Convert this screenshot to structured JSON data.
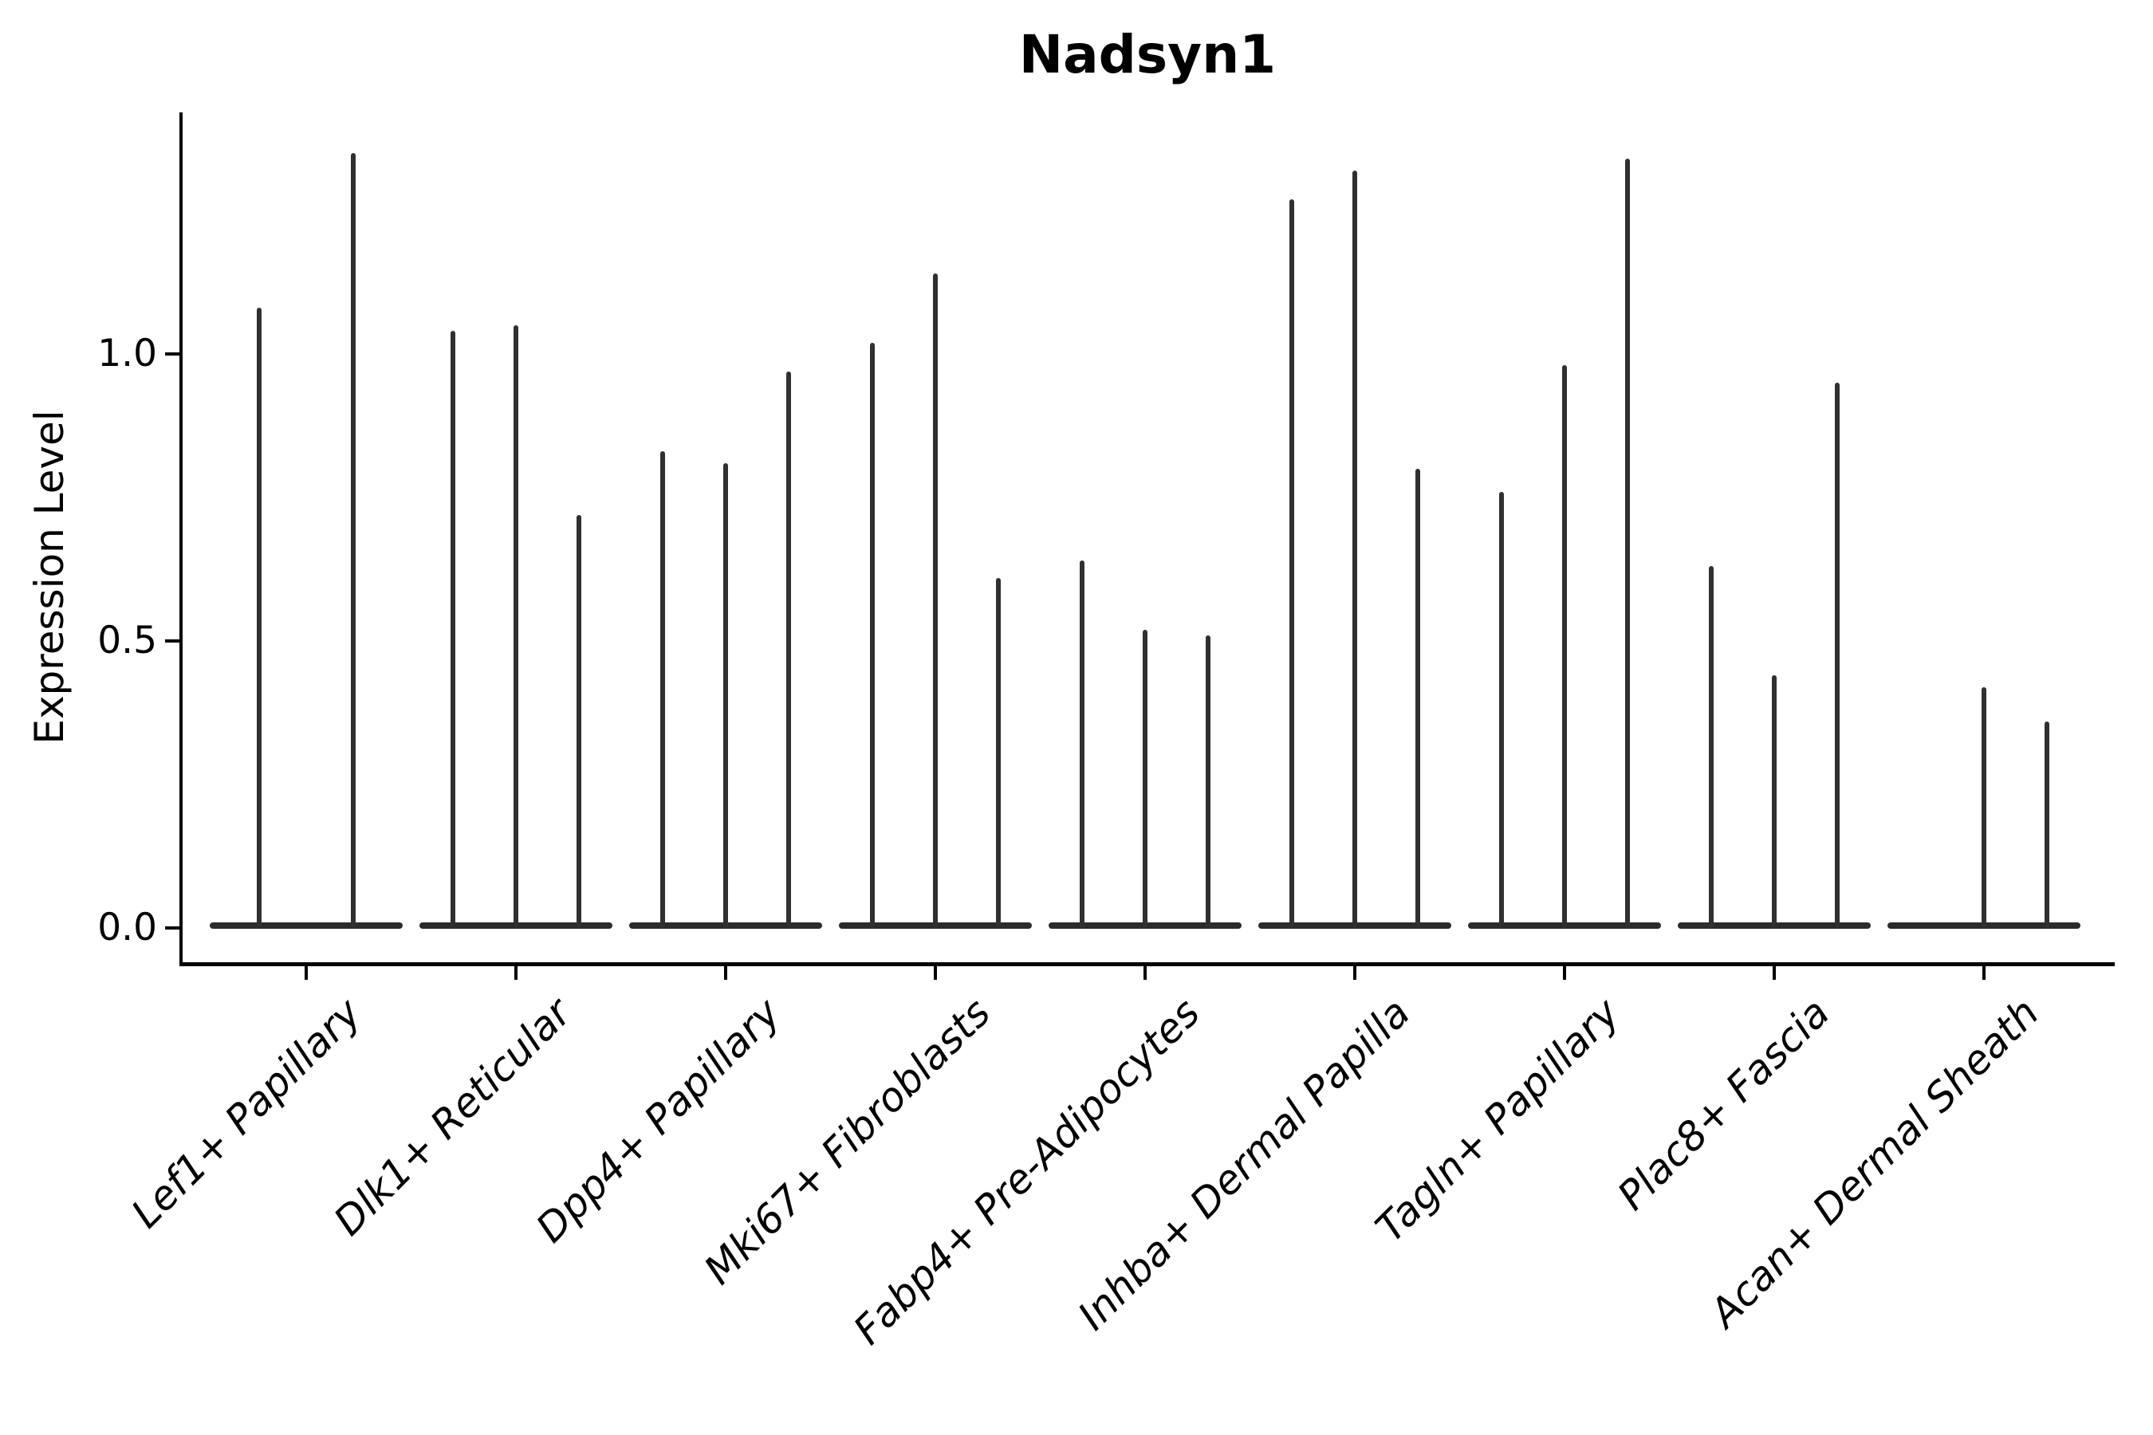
{
  "figure": {
    "title": "Nadsyn1",
    "y_axis": {
      "label": "Expression Level",
      "tick_labels": [
        "0.0",
        "0.5",
        "1.0"
      ]
    }
  },
  "colors": {
    "violin": "#303030",
    "baseline": "#2b2b2b",
    "axis": "#000000",
    "background": "#ffffff"
  },
  "chart_data": {
    "type": "violin",
    "title": "Nadsyn1",
    "xlabel": "",
    "ylabel": "Expression Level",
    "ylim": [
      -0.06,
      1.42
    ],
    "yticks": [
      0.0,
      0.5,
      1.0
    ],
    "grid": false,
    "legend": false,
    "categories": [
      "Lef1+ Papillary",
      "Dlk1+ Reticular",
      "Dpp4+ Papillary",
      "Mki67+ Fibroblasts",
      "Fabp4+ Pre-Adipocytes",
      "Inhba+ Dermal Papilla",
      "Tagln+ Papillary",
      "Plac8+ Fascia",
      "Acan+ Dermal Sheath"
    ],
    "description": "Each category shows 2-3 extremely thin violins; nearly all density sits at expression 0 (flat base) with a thin spike up to the max expression value.",
    "series": [
      {
        "category": "Lef1+ Papillary",
        "violins": [
          {
            "offset": -0.225,
            "max": 1.08
          },
          {
            "offset": 0.225,
            "max": 1.35
          }
        ]
      },
      {
        "category": "Dlk1+ Reticular",
        "violins": [
          {
            "offset": -0.3,
            "max": 1.04
          },
          {
            "offset": 0.0,
            "max": 1.05
          },
          {
            "offset": 0.3,
            "max": 0.72
          }
        ]
      },
      {
        "category": "Dpp4+ Papillary",
        "violins": [
          {
            "offset": -0.3,
            "max": 0.83
          },
          {
            "offset": 0.0,
            "max": 0.81
          },
          {
            "offset": 0.3,
            "max": 0.97
          }
        ]
      },
      {
        "category": "Mki67+ Fibroblasts",
        "violins": [
          {
            "offset": -0.3,
            "max": 1.02
          },
          {
            "offset": 0.0,
            "max": 1.14
          },
          {
            "offset": 0.3,
            "max": 0.61
          }
        ]
      },
      {
        "category": "Fabp4+ Pre-Adipocytes",
        "violins": [
          {
            "offset": -0.3,
            "max": 0.64
          },
          {
            "offset": 0.0,
            "max": 0.52
          },
          {
            "offset": 0.3,
            "max": 0.51
          }
        ]
      },
      {
        "category": "Inhba+ Dermal Papilla",
        "violins": [
          {
            "offset": -0.3,
            "max": 1.27
          },
          {
            "offset": 0.0,
            "max": 1.32
          },
          {
            "offset": 0.3,
            "max": 0.8
          }
        ]
      },
      {
        "category": "Tagln+ Papillary",
        "violins": [
          {
            "offset": -0.3,
            "max": 0.76
          },
          {
            "offset": 0.0,
            "max": 0.98
          },
          {
            "offset": 0.3,
            "max": 1.34
          }
        ]
      },
      {
        "category": "Plac8+ Fascia",
        "violins": [
          {
            "offset": -0.3,
            "max": 0.63
          },
          {
            "offset": 0.0,
            "max": 0.44
          },
          {
            "offset": 0.3,
            "max": 0.95
          }
        ]
      },
      {
        "category": "Acan+ Dermal Sheath",
        "violins": [
          {
            "offset": -0.3,
            "max": 0.0
          },
          {
            "offset": 0.0,
            "max": 0.42
          },
          {
            "offset": 0.3,
            "max": 0.36
          }
        ]
      }
    ]
  }
}
